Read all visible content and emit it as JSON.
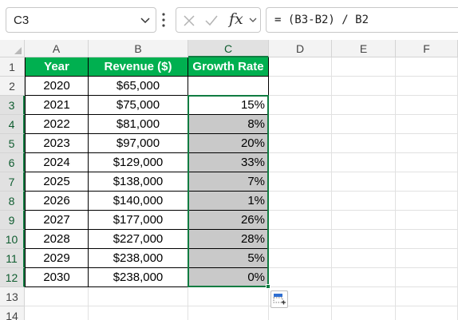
{
  "formula_bar": {
    "name_box": "C3",
    "fx_label": "fx",
    "formula": "= (B3-B2) / B2"
  },
  "columns": [
    "A",
    "B",
    "C",
    "D",
    "E",
    "F"
  ],
  "rows": [
    "1",
    "2",
    "3",
    "4",
    "5",
    "6",
    "7",
    "8",
    "9",
    "10",
    "11",
    "12",
    "13",
    "14"
  ],
  "table": {
    "headers": [
      "Year",
      "Revenue ($)",
      "Growth Rate"
    ],
    "data": [
      [
        "2020",
        "$65,000",
        ""
      ],
      [
        "2021",
        "$75,000",
        "15%"
      ],
      [
        "2022",
        "$81,000",
        "8%"
      ],
      [
        "2023",
        "$97,000",
        "20%"
      ],
      [
        "2024",
        "$129,000",
        "33%"
      ],
      [
        "2025",
        "$138,000",
        "7%"
      ],
      [
        "2026",
        "$140,000",
        "1%"
      ],
      [
        "2027",
        "$177,000",
        "26%"
      ],
      [
        "2028",
        "$227,000",
        "28%"
      ],
      [
        "2029",
        "$238,000",
        "5%"
      ],
      [
        "2030",
        "$238,000",
        "0%"
      ]
    ]
  },
  "selection": {
    "active_cell": "C3",
    "range": "C3:C12"
  },
  "colors": {
    "header_fill": "#00b050",
    "selection": "#107c41",
    "shaded": "#c9c9c9"
  },
  "icons": [
    "chevron-down-icon",
    "more-vertical-icon",
    "cancel-icon",
    "enter-icon",
    "quick-analysis-icon"
  ]
}
